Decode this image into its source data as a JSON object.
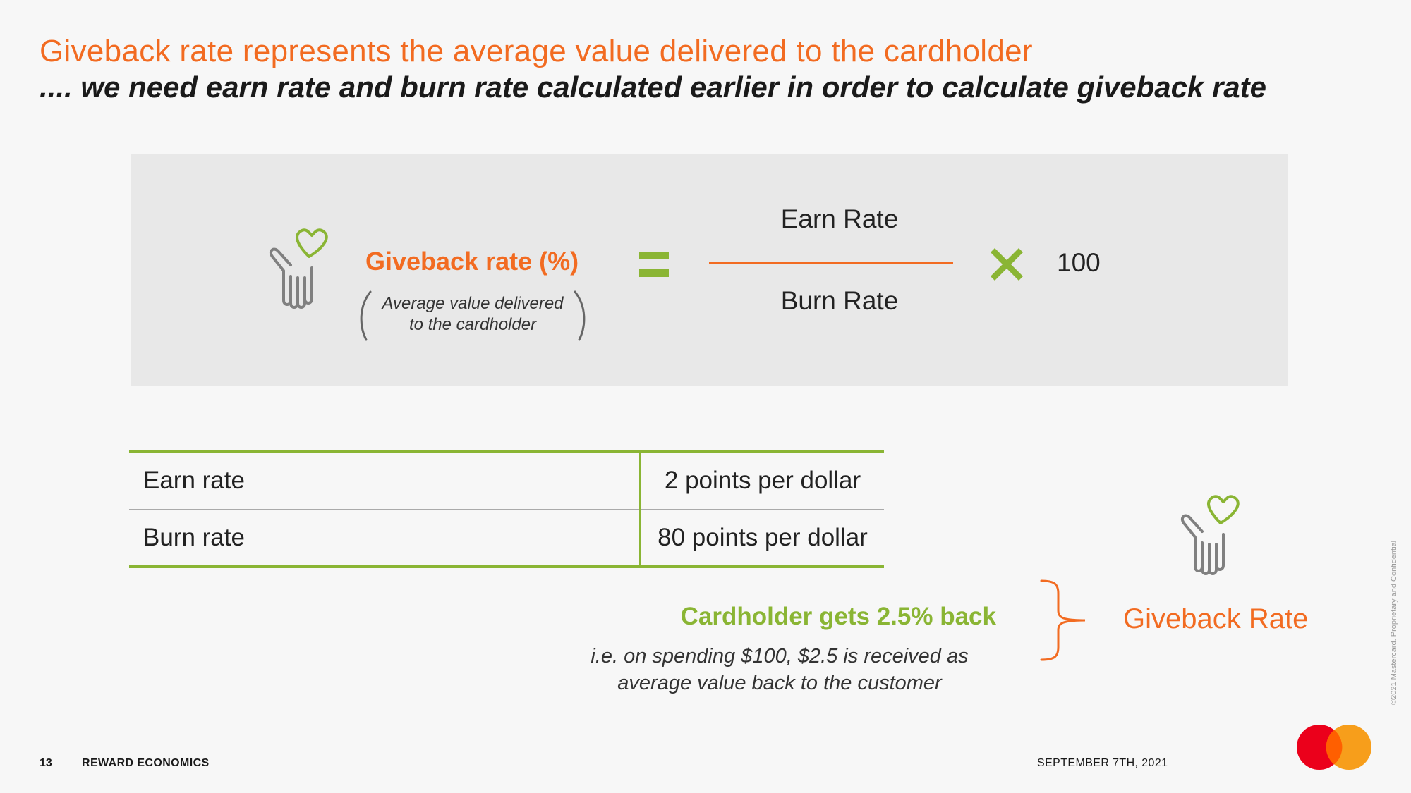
{
  "header": {
    "title": "Giveback rate represents the average value delivered to the cardholder",
    "subtitle": ".... we need earn rate and burn rate calculated earlier in order to calculate giveback rate"
  },
  "formula": {
    "label": "Giveback rate (%)",
    "note_line1": "Average value delivered",
    "note_line2": "to the cardholder",
    "numerator": "Earn Rate",
    "denominator": "Burn Rate",
    "multiplier": "100",
    "icons": {
      "hand": "hand-heart-icon",
      "equals": "equals-icon",
      "times": "times-icon"
    }
  },
  "table": {
    "rows": [
      {
        "label": "Earn rate",
        "value": "2 points per dollar"
      },
      {
        "label": "Burn rate",
        "value": "80 points per dollar"
      }
    ]
  },
  "result": {
    "headline": "Cardholder gets 2.5% back",
    "detail_line1": "i.e. on spending $100, $2.5 is received as",
    "detail_line2": "average value back to the customer",
    "label": "Giveback Rate"
  },
  "footer": {
    "page_number": "13",
    "section": "REWARD ECONOMICS",
    "date": "SEPTEMBER 7TH, 2021",
    "copyright": "©2021 Mastercard. Proprietary and Confidential"
  },
  "colors": {
    "orange": "#f26b21",
    "green": "#8ab534",
    "gray_icon": "#808080",
    "panel": "#e8e8e8"
  }
}
